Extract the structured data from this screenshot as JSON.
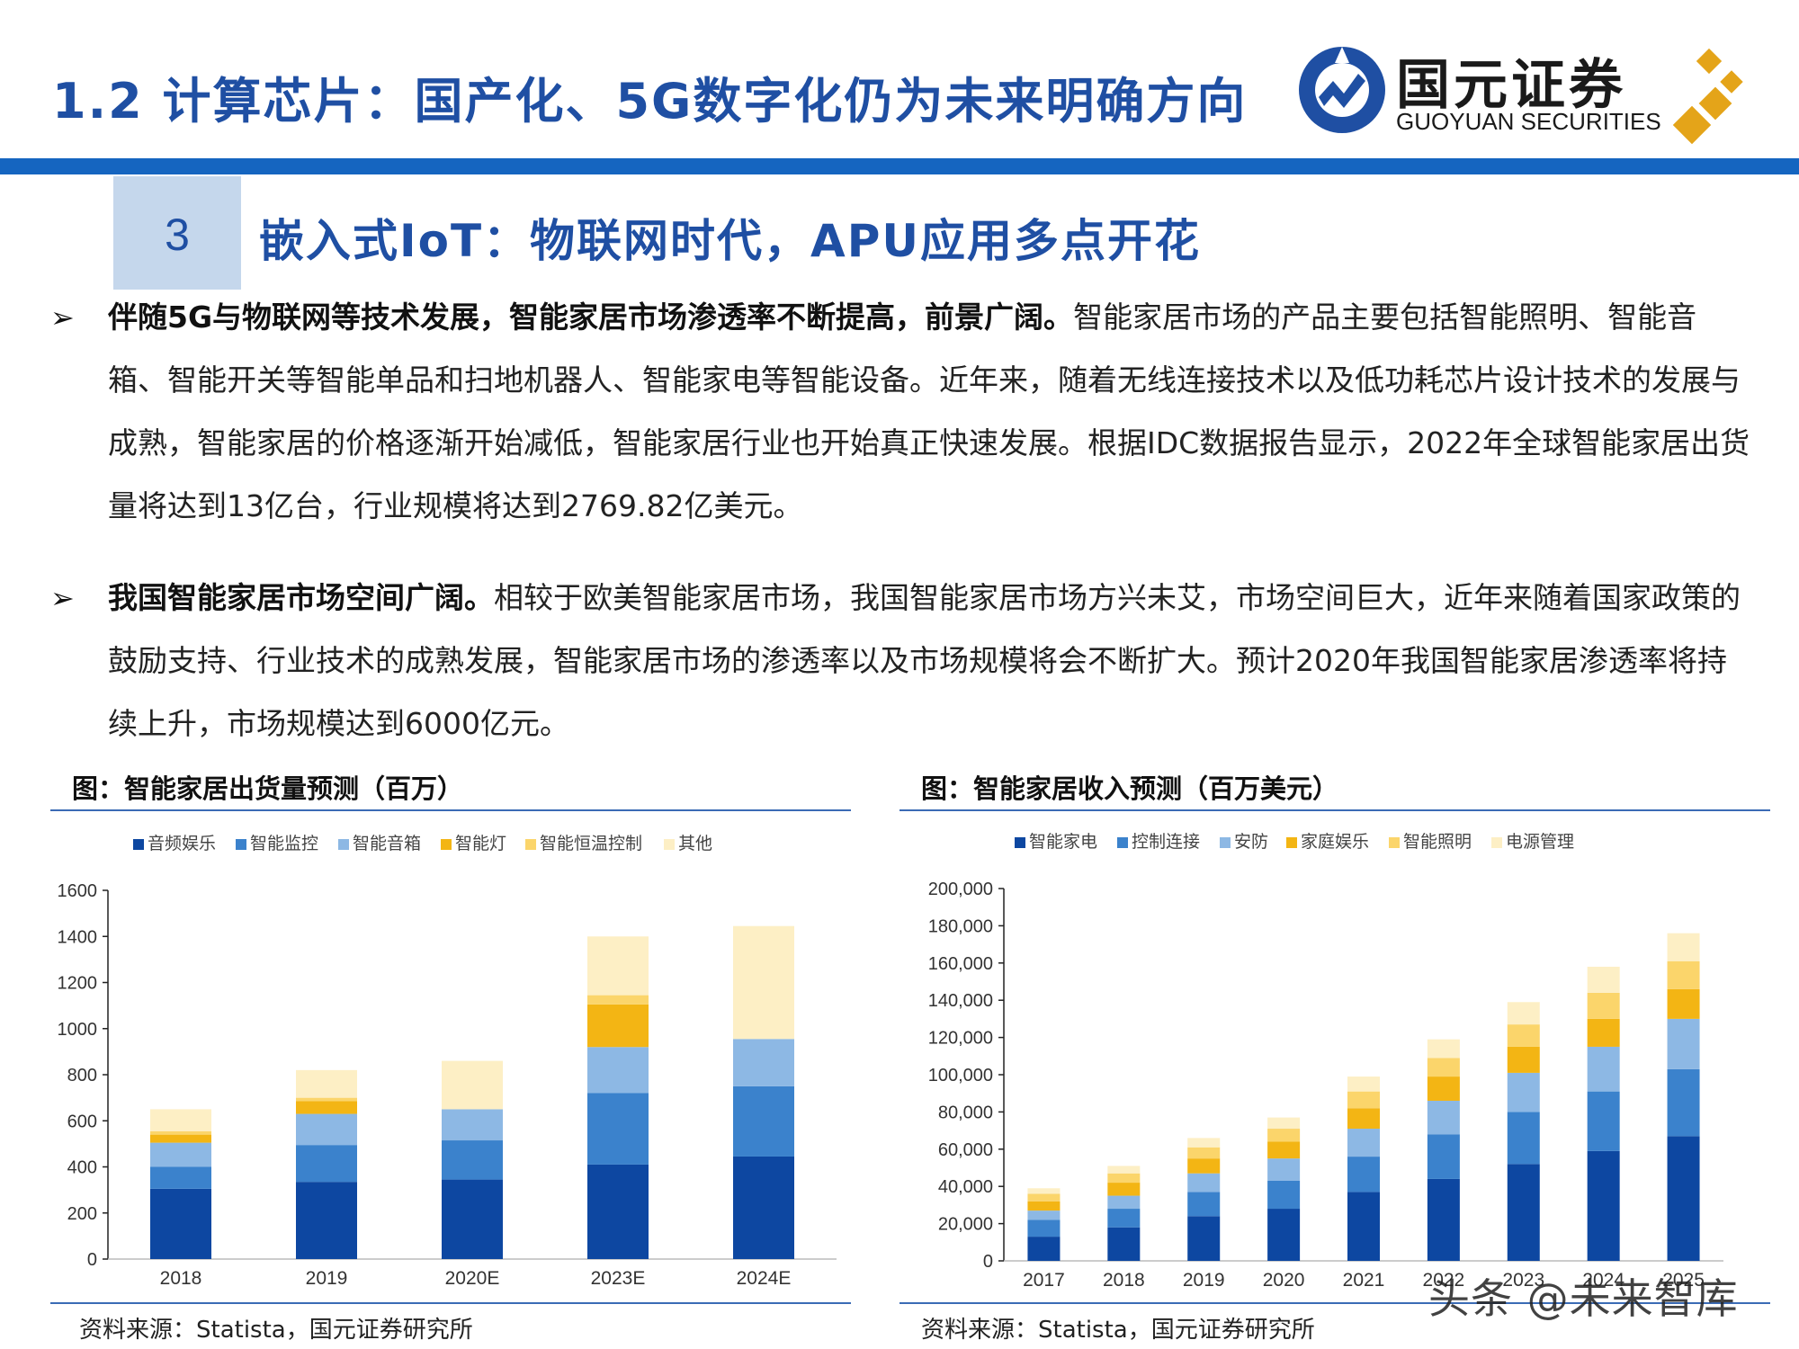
{
  "header": {
    "title": "1.2 计算芯片：国产化、5G数字化仍为未来明确方向",
    "logo_cn": "国元证券",
    "logo_en": "GUOYUAN SECURITIES"
  },
  "section": {
    "number": "3",
    "title": "嵌入式IoT：物联网时代，APU应用多点开花"
  },
  "bullets": [
    {
      "lead": "伴随5G与物联网等技术发展，智能家居市场渗透率不断提高，前景广阔。",
      "text": "智能家居市场的产品主要包括智能照明、智能音箱、智能开关等智能单品和扫地机器人、智能家电等智能设备。近年来，随着无线连接技术以及低功耗芯片设计技术的发展与成熟，智能家居的价格逐渐开始减低，智能家居行业也开始真正快速发展。根据IDC数据报告显示，2022年全球智能家居出货量将达到13亿台，行业规模将达到2769.82亿美元。"
    },
    {
      "lead": "我国智能家居市场空间广阔。",
      "text": "相较于欧美智能家居市场，我国智能家居市场方兴未艾，市场空间巨大，近年来随着国家政策的鼓励支持、行业技术的成熟发展，智能家居市场的渗透率以及市场规模将会不断扩大。预计2020年我国智能家居渗透率将持续上升，市场规模达到6000亿元。"
    }
  ],
  "figures": {
    "left_title": "图：智能家居出货量预测（百万）",
    "right_title": "图：智能家居收入预测（百万美元）",
    "left_source": "资料来源：Statista，国元证券研究所",
    "right_source": "资料来源：Statista，国元证券研究所"
  },
  "watermark": "头条 @未来智库",
  "colors": {
    "brand_blue": "#1f4fa3",
    "band_blue": "#1565c0",
    "series": [
      "#0d47a1",
      "#3b82cc",
      "#8db8e4",
      "#f3b514",
      "#fbd56b",
      "#fdefc5"
    ]
  },
  "chart_data": [
    {
      "type": "bar",
      "stacked": true,
      "title": "图：智能家居出货量预测（百万）",
      "categories": [
        "2018",
        "2019",
        "2020E",
        "2023E",
        "2024E"
      ],
      "series": [
        {
          "name": "音频娱乐",
          "values": [
            305,
            335,
            345,
            410,
            445
          ]
        },
        {
          "name": "智能监控",
          "values": [
            95,
            160,
            170,
            310,
            305
          ]
        },
        {
          "name": "智能音箱",
          "values": [
            105,
            135,
            135,
            200,
            205
          ]
        },
        {
          "name": "智能灯",
          "values": [
            35,
            55,
            0,
            185,
            0
          ]
        },
        {
          "name": "智能恒温控制",
          "values": [
            15,
            15,
            0,
            40,
            0
          ]
        },
        {
          "name": "其他",
          "values": [
            95,
            120,
            210,
            255,
            490
          ]
        }
      ],
      "ylim": [
        0,
        1600
      ],
      "yticks": [
        "0",
        "200",
        "400",
        "600",
        "800",
        "1000",
        "1200",
        "1400",
        "1600"
      ],
      "legend": "top",
      "grid": false
    },
    {
      "type": "bar",
      "stacked": true,
      "title": "图：智能家居收入预测（百万美元）",
      "categories": [
        "2017",
        "2018",
        "2019",
        "2020",
        "2021",
        "2022",
        "2023",
        "2024",
        "2025"
      ],
      "series": [
        {
          "name": "智能家电",
          "values": [
            13000,
            18000,
            24000,
            28000,
            37000,
            44000,
            52000,
            59000,
            67000
          ]
        },
        {
          "name": "控制连接",
          "values": [
            9000,
            10000,
            13000,
            15000,
            19000,
            24000,
            28000,
            32000,
            36000
          ]
        },
        {
          "name": "安防",
          "values": [
            5000,
            7000,
            10000,
            12000,
            15000,
            18000,
            21000,
            24000,
            27000
          ]
        },
        {
          "name": "家庭娱乐",
          "values": [
            5000,
            7000,
            8000,
            9000,
            11000,
            13000,
            14000,
            15000,
            16000
          ]
        },
        {
          "name": "智能照明",
          "values": [
            4000,
            5000,
            6000,
            7000,
            9000,
            10000,
            12000,
            14000,
            15000
          ]
        },
        {
          "name": "电源管理",
          "values": [
            3000,
            4000,
            5000,
            6000,
            8000,
            10000,
            12000,
            14000,
            15000
          ]
        }
      ],
      "ylim": [
        0,
        200000
      ],
      "yticks": [
        "0",
        "20,000",
        "40,000",
        "60,000",
        "80,000",
        "100,000",
        "120,000",
        "140,000",
        "160,000",
        "180,000",
        "200,000"
      ],
      "legend": "top",
      "grid": false
    }
  ]
}
